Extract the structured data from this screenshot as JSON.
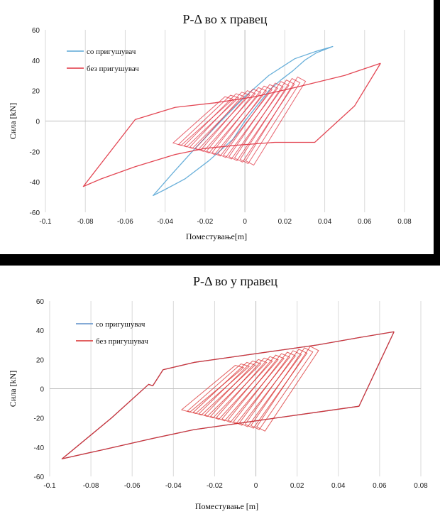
{
  "chart_data": [
    {
      "type": "line",
      "title": "P-Δ во x правец",
      "xlabel": "Поместување[m]",
      "ylabel": "Сила [kN]",
      "xlim": [
        -0.1,
        0.08
      ],
      "ylim": [
        -60,
        60
      ],
      "x_ticks": [
        "-0.1",
        "-0.08",
        "-0.06",
        "-0.04",
        "-0.02",
        "0",
        "0.02",
        "0.04",
        "0.06",
        "0.08"
      ],
      "y_ticks": [
        "60",
        "40",
        "20",
        "0",
        "-20",
        "-40",
        "-60"
      ],
      "grid": "vertical",
      "legend_position": "top-left",
      "series": [
        {
          "name": "со пригушувач",
          "color": "#5aa7d6",
          "x": [
            0,
            0.006,
            0.012,
            0.018,
            0.024,
            0.03,
            0.036,
            0.044,
            0.036,
            0.025,
            0.012,
            0,
            -0.012,
            -0.025,
            -0.036,
            -0.046,
            -0.04,
            -0.03,
            -0.018,
            -0.006,
            0
          ],
          "y": [
            0,
            10,
            20,
            27,
            33,
            40,
            45,
            49,
            46,
            41,
            30,
            16,
            0,
            -18,
            -34,
            -49,
            -45,
            -38,
            -26,
            -12,
            0
          ]
        },
        {
          "name": "без пригушувач",
          "color": "#e03341",
          "x": [
            0.068,
            0.05,
            0.025,
            0.005,
            -0.015,
            -0.035,
            -0.055,
            -0.081,
            -0.072,
            -0.055,
            -0.035,
            -0.02,
            -0.005,
            0.015,
            0.035,
            0.055,
            0.068
          ],
          "y": [
            38,
            30,
            22,
            16,
            12,
            9,
            1,
            -43,
            -38,
            -30,
            -22,
            -18,
            -16,
            -14,
            -14,
            10,
            38
          ]
        }
      ]
    },
    {
      "type": "line",
      "title": "P-Δ во y правец",
      "xlabel": "Поместување [m]",
      "ylabel": "Сила [kN]",
      "xlim": [
        -0.1,
        0.08
      ],
      "ylim": [
        -60,
        60
      ],
      "x_ticks": [
        "-0.1",
        "-0.08",
        "-0.06",
        "-0.04",
        "-0.02",
        "0",
        "0.02",
        "0.04",
        "0.06",
        "0.08"
      ],
      "y_ticks": [
        "60",
        "40",
        "20",
        "0",
        "-20",
        "-40",
        "-60"
      ],
      "grid": "vertical",
      "legend_position": "top-left",
      "series": [
        {
          "name": "со пригушувач",
          "color": "#5b8ec9",
          "x": [
            0.067,
            0.05,
            0.03,
            0.01,
            -0.01,
            -0.03,
            -0.045,
            -0.05,
            -0.052,
            -0.07,
            -0.094,
            -0.075,
            -0.05,
            -0.03,
            -0.01,
            0.01,
            0.03,
            0.05,
            0.067
          ],
          "y": [
            39,
            35,
            30,
            26,
            22,
            18,
            13,
            2,
            3,
            -20,
            -48,
            -42,
            -34,
            -28,
            -24,
            -20,
            -16,
            -12,
            39
          ]
        },
        {
          "name": "без пригушувач",
          "color": "#d92b2b",
          "x": [
            0.067,
            0.05,
            0.03,
            0.01,
            -0.01,
            -0.03,
            -0.045,
            -0.05,
            -0.052,
            -0.07,
            -0.094,
            -0.075,
            -0.05,
            -0.03,
            -0.01,
            0.01,
            0.03,
            0.05,
            0.067
          ],
          "y": [
            39,
            35,
            30,
            26,
            22,
            18,
            13,
            2,
            3,
            -20,
            -48,
            -42,
            -34,
            -28,
            -24,
            -20,
            -16,
            -12,
            39
          ]
        }
      ]
    }
  ]
}
